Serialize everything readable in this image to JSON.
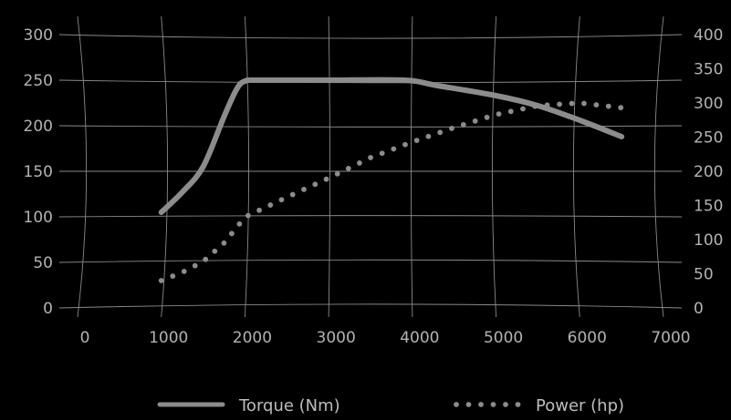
{
  "chart_data": {
    "type": "line",
    "title": "",
    "xlabel": "",
    "ylabel": "",
    "x_ticks": [
      0,
      1000,
      2000,
      3000,
      4000,
      5000,
      6000,
      7000
    ],
    "y_left_ticks": [
      0,
      50,
      100,
      150,
      200,
      250,
      300
    ],
    "y_right_ticks": [
      0,
      50,
      100,
      150,
      200,
      250,
      300,
      350,
      400
    ],
    "xlim": [
      0,
      7000
    ],
    "ylim_left": [
      0,
      300
    ],
    "ylim_right": [
      0,
      400
    ],
    "grid": true,
    "legend_position": "bottom",
    "series": [
      {
        "name": "Torque (Nm)",
        "axis": "left",
        "style": "solid",
        "color": "#8c8c8c",
        "x": [
          1000,
          1250,
          1500,
          1750,
          1900,
          2000,
          2200,
          3000,
          3900,
          4300,
          5000,
          5500,
          6000,
          6500
        ],
        "y": [
          105,
          127,
          155,
          210,
          240,
          249,
          250,
          250,
          250,
          244,
          233,
          222,
          206,
          188
        ]
      },
      {
        "name": "Power (hp)",
        "axis": "right",
        "style": "dotted",
        "color": "#8c8c8c",
        "x": [
          1000,
          1250,
          1500,
          1750,
          2000,
          2500,
          3000,
          3500,
          4000,
          4500,
          5000,
          5500,
          6000,
          6500
        ],
        "y": [
          40,
          52,
          68,
          95,
          133,
          162,
          190,
          220,
          243,
          264,
          283,
          296,
          300,
          293
        ]
      }
    ]
  }
}
